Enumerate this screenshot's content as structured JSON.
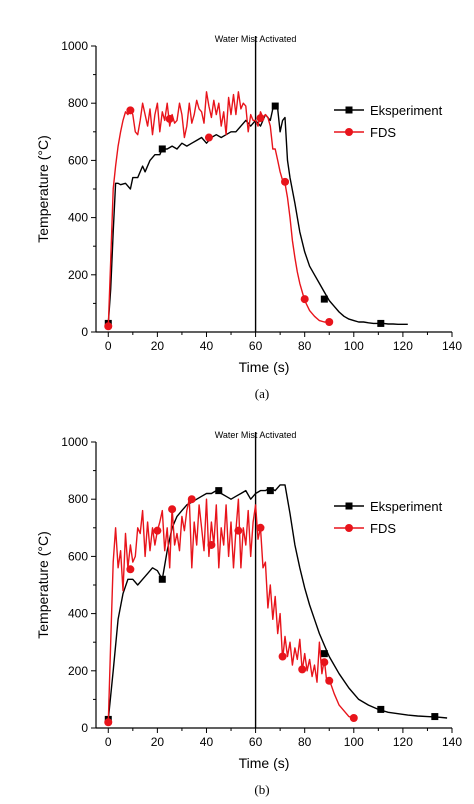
{
  "chart_data": [
    {
      "type": "line",
      "panel_label": "(a)",
      "xlabel": "Time (s)",
      "ylabel": "Temperature (°C)",
      "xlim": [
        -5,
        140
      ],
      "ylim": [
        0,
        1000
      ],
      "xticks": [
        "0",
        "20",
        "40",
        "60",
        "80",
        "100",
        "120",
        "140"
      ],
      "yticks": [
        "0",
        "200",
        "400",
        "600",
        "800",
        "1000"
      ],
      "legend_position": "top-right",
      "annotation": {
        "text": "Water Mist Activated",
        "x": 60
      },
      "series": [
        {
          "name": "Eksperiment",
          "color": "#000000",
          "marker": "square",
          "x": [
            0,
            1,
            2,
            3,
            4,
            5,
            7,
            9,
            10,
            12,
            14,
            15,
            17,
            19,
            21,
            22,
            24,
            26,
            28,
            30,
            32,
            34,
            36,
            38,
            40,
            42,
            44,
            46,
            48,
            50,
            52,
            54,
            56,
            58,
            60,
            62,
            64,
            66,
            67,
            68,
            69,
            70,
            71,
            72,
            73,
            74,
            76,
            78,
            80,
            82,
            84,
            86,
            88,
            90,
            92,
            94,
            96,
            98,
            100,
            102,
            104,
            106,
            108,
            110,
            112,
            114,
            116,
            118,
            120,
            122
          ],
          "y": [
            30,
            150,
            350,
            520,
            520,
            515,
            520,
            500,
            540,
            540,
            580,
            560,
            600,
            620,
            620,
            640,
            640,
            650,
            640,
            660,
            650,
            660,
            670,
            680,
            660,
            680,
            690,
            680,
            690,
            700,
            700,
            720,
            740,
            720,
            740,
            720,
            760,
            740,
            780,
            790,
            780,
            700,
            740,
            750,
            600,
            540,
            450,
            350,
            280,
            230,
            200,
            170,
            140,
            110,
            90,
            70,
            55,
            45,
            40,
            35,
            35,
            32,
            30,
            30,
            30,
            28,
            28,
            27,
            27,
            27
          ],
          "marker_points": [
            [
              0,
              30
            ],
            [
              22,
              640
            ],
            [
              68,
              790
            ],
            [
              88,
              115
            ],
            [
              111,
              30
            ]
          ]
        },
        {
          "name": "FDS",
          "color": "#e8141b",
          "marker": "circle",
          "x": [
            0,
            1,
            2,
            3,
            4,
            5,
            6,
            7,
            8,
            9,
            10,
            11,
            12,
            13,
            14,
            15,
            16,
            17,
            18,
            19,
            20,
            21,
            22,
            23,
            24,
            25,
            26,
            27,
            28,
            29,
            30,
            31,
            32,
            33,
            34,
            35,
            36,
            37,
            38,
            39,
            40,
            41,
            42,
            43,
            44,
            45,
            46,
            47,
            48,
            49,
            50,
            51,
            52,
            53,
            54,
            55,
            56,
            57,
            58,
            59,
            60,
            61,
            62,
            63,
            64,
            65,
            66,
            67,
            68,
            69,
            70,
            71,
            72,
            73,
            74,
            75,
            76,
            77,
            78,
            80,
            82,
            84,
            86,
            88,
            90
          ],
          "y": [
            20,
            250,
            500,
            580,
            650,
            700,
            740,
            770,
            760,
            780,
            760,
            700,
            690,
            740,
            800,
            760,
            720,
            780,
            690,
            760,
            800,
            700,
            770,
            740,
            800,
            720,
            760,
            730,
            740,
            800,
            760,
            680,
            720,
            800,
            730,
            760,
            810,
            780,
            770,
            730,
            840,
            790,
            750,
            810,
            760,
            800,
            720,
            770,
            690,
            820,
            760,
            830,
            760,
            840,
            780,
            800,
            790,
            700,
            760,
            740,
            740,
            720,
            770,
            750,
            760,
            750,
            720,
            640,
            640,
            600,
            560,
            530,
            520,
            470,
            400,
            320,
            260,
            210,
            170,
            110,
            75,
            55,
            40,
            35,
            35
          ],
          "marker_points": [
            [
              0,
              20
            ],
            [
              9,
              775
            ],
            [
              25,
              745
            ],
            [
              41,
              680
            ],
            [
              62,
              748
            ],
            [
              72,
              525
            ],
            [
              80,
              115
            ],
            [
              90,
              35
            ]
          ]
        }
      ]
    },
    {
      "type": "line",
      "panel_label": "(b)",
      "xlabel": "Time (s)",
      "ylabel": "Temperature (°C)",
      "xlim": [
        -5,
        140
      ],
      "ylim": [
        0,
        1000
      ],
      "xticks": [
        "0",
        "20",
        "40",
        "60",
        "80",
        "100",
        "120",
        "140"
      ],
      "yticks": [
        "0",
        "200",
        "400",
        "600",
        "800",
        "1000"
      ],
      "legend_position": "top-right",
      "annotation": {
        "text": "Water Mist Activated",
        "x": 60
      },
      "series": [
        {
          "name": "Eksperiment",
          "color": "#000000",
          "marker": "square",
          "x": [
            0,
            2,
            4,
            6,
            8,
            10,
            12,
            14,
            16,
            18,
            20,
            22,
            24,
            26,
            28,
            30,
            32,
            34,
            36,
            38,
            40,
            42,
            44,
            46,
            48,
            50,
            52,
            54,
            56,
            58,
            60,
            62,
            64,
            66,
            68,
            70,
            72,
            74,
            76,
            78,
            80,
            82,
            84,
            86,
            88,
            90,
            94,
            98,
            102,
            106,
            110,
            114,
            118,
            122,
            126,
            130,
            134,
            138
          ],
          "y": [
            30,
            200,
            380,
            470,
            520,
            520,
            500,
            520,
            540,
            560,
            550,
            520,
            620,
            700,
            740,
            760,
            780,
            790,
            800,
            810,
            820,
            820,
            830,
            820,
            810,
            800,
            810,
            820,
            830,
            800,
            820,
            830,
            830,
            840,
            830,
            850,
            850,
            750,
            640,
            560,
            490,
            430,
            380,
            330,
            290,
            250,
            190,
            140,
            100,
            80,
            65,
            55,
            50,
            45,
            42,
            40,
            38,
            35
          ],
          "marker_points": [
            [
              0,
              30
            ],
            [
              22,
              520
            ],
            [
              45,
              830
            ],
            [
              66,
              830
            ],
            [
              88,
              260
            ],
            [
              111,
              65
            ],
            [
              133,
              40
            ]
          ]
        },
        {
          "name": "FDS",
          "color": "#e8141b",
          "marker": "circle",
          "x": [
            0,
            1,
            2,
            3,
            4,
            5,
            6,
            7,
            8,
            9,
            10,
            11,
            12,
            13,
            14,
            15,
            16,
            17,
            18,
            19,
            20,
            21,
            22,
            23,
            24,
            25,
            26,
            27,
            28,
            29,
            30,
            31,
            32,
            33,
            34,
            35,
            36,
            37,
            38,
            39,
            40,
            41,
            42,
            43,
            44,
            45,
            46,
            47,
            48,
            49,
            50,
            51,
            52,
            53,
            54,
            55,
            56,
            57,
            58,
            59,
            60,
            61,
            62,
            63,
            64,
            65,
            66,
            67,
            68,
            69,
            70,
            71,
            72,
            73,
            74,
            75,
            76,
            77,
            78,
            79,
            80,
            81,
            82,
            83,
            84,
            85,
            86,
            87,
            88,
            89,
            90,
            92,
            94,
            96,
            98,
            100
          ],
          "y": [
            20,
            300,
            580,
            700,
            560,
            620,
            480,
            680,
            560,
            640,
            580,
            600,
            700,
            680,
            760,
            600,
            720,
            620,
            700,
            640,
            690,
            720,
            760,
            620,
            700,
            560,
            770,
            640,
            680,
            620,
            740,
            690,
            760,
            800,
            560,
            720,
            640,
            780,
            700,
            620,
            800,
            600,
            720,
            640,
            780,
            560,
            700,
            640,
            780,
            600,
            720,
            560,
            690,
            800,
            560,
            700,
            640,
            760,
            600,
            720,
            780,
            660,
            700,
            560,
            580,
            420,
            500,
            380,
            460,
            330,
            400,
            240,
            320,
            250,
            300,
            220,
            280,
            240,
            310,
            200,
            260,
            200,
            240,
            180,
            220,
            160,
            300,
            190,
            240,
            160,
            170,
            120,
            80,
            60,
            40,
            35
          ],
          "marker_points": [
            [
              0,
              20
            ],
            [
              9,
              555
            ],
            [
              20,
              690
            ],
            [
              26,
              765
            ],
            [
              34,
              800
            ],
            [
              42,
              640
            ],
            [
              53,
              690
            ],
            [
              62,
              700
            ],
            [
              71,
              250
            ],
            [
              79,
              205
            ],
            [
              88,
              230
            ],
            [
              90,
              165
            ],
            [
              100,
              35
            ]
          ]
        }
      ]
    }
  ]
}
